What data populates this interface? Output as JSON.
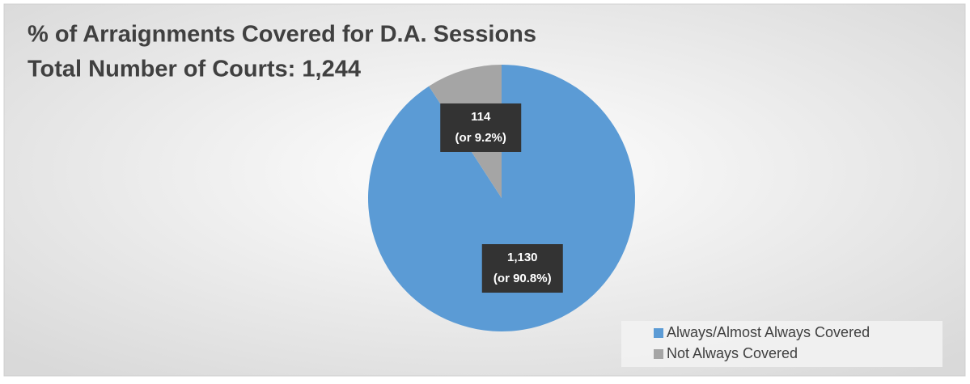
{
  "chart_data": {
    "type": "pie",
    "title": "% of Arraignments Covered for D.A. Sessions",
    "subtitle": "Total Number of Courts: 1,244",
    "categories": [
      "Always/Almost Always Covered",
      "Not Always Covered"
    ],
    "values": [
      1130,
      114
    ],
    "value_labels": [
      [
        "1,130",
        "(or 90.8%)"
      ],
      [
        "114",
        "(or 9.2%)"
      ]
    ],
    "colors": [
      "#5b9bd5",
      "#a5a5a5"
    ],
    "legend": "bottom-right"
  }
}
